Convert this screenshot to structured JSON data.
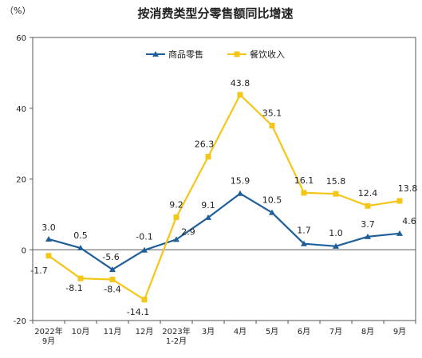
{
  "chart_data": {
    "type": "line",
    "title": "按消费类型分零售额同比增速",
    "unit_label": "（%）",
    "categories": [
      [
        "2022年",
        "9月"
      ],
      [
        "10月"
      ],
      [
        "11月"
      ],
      [
        "12月"
      ],
      [
        "2023年",
        "1-2月"
      ],
      [
        "3月"
      ],
      [
        "4月"
      ],
      [
        "5月"
      ],
      [
        "6月"
      ],
      [
        "7月"
      ],
      [
        "8月"
      ],
      [
        "9月"
      ]
    ],
    "ylim": [
      -20,
      60
    ],
    "yticks": [
      -20,
      0,
      20,
      40,
      60
    ],
    "legend_position": "top-center",
    "series": [
      {
        "name": "商品零售",
        "color": "#1f5f99",
        "marker": "triangle",
        "values": [
          3.0,
          0.5,
          -5.6,
          -0.1,
          2.9,
          9.1,
          15.9,
          10.5,
          1.7,
          1.0,
          3.7,
          4.6
        ],
        "labels": [
          "3.0",
          "0.5",
          "-5.6",
          "-0.1",
          "2.9",
          "9.1",
          "15.9",
          "10.5",
          "1.7",
          "1.0",
          "3.7",
          "4.6"
        ]
      },
      {
        "name": "餐饮收入",
        "color": "#f5c518",
        "marker": "square",
        "values": [
          -1.7,
          -8.1,
          -8.4,
          -14.1,
          9.2,
          26.3,
          43.8,
          35.1,
          16.1,
          15.8,
          12.4,
          13.8
        ],
        "labels": [
          "-1.7",
          "-8.1",
          "-8.4",
          "-14.1",
          "9.2",
          "26.3",
          "43.8",
          "35.1",
          "16.1",
          "15.8",
          "12.4",
          "13.8"
        ]
      }
    ]
  }
}
